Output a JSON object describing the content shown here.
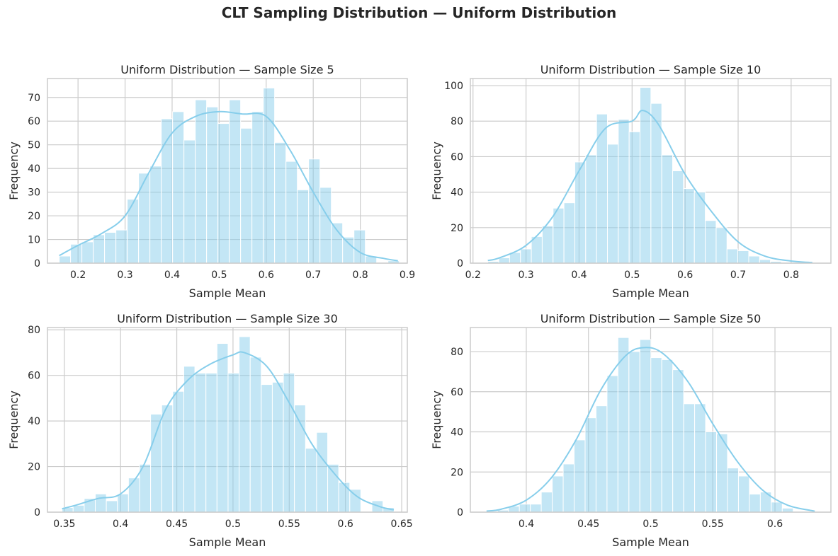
{
  "figure": {
    "title": "CLT Sampling Distribution — Uniform Distribution",
    "bar_color": "#87ceeb",
    "kde_color": "#87ceeb",
    "grid_color": "#cccccc"
  },
  "chart_data": [
    {
      "type": "bar",
      "title": "Uniform Distribution — Sample Size 5",
      "xlabel": "Sample Mean",
      "ylabel": "Frequency",
      "xlim": [
        0.135,
        0.9
      ],
      "ylim": [
        0,
        78
      ],
      "xticks": [
        0.2,
        0.3,
        0.4,
        0.5,
        0.6,
        0.7,
        0.8,
        0.9
      ],
      "yticks": [
        0,
        10,
        20,
        30,
        40,
        50,
        60,
        70
      ],
      "bin_start": 0.16,
      "bin_width": 0.0241,
      "values": [
        3,
        8,
        9,
        12,
        13,
        14,
        27,
        38,
        41,
        61,
        64,
        52,
        69,
        66,
        59,
        69,
        57,
        64,
        74,
        51,
        43,
        31,
        44,
        32,
        17,
        11,
        14,
        3,
        0,
        1
      ],
      "kde": [
        [
          0.16,
          3.2
        ],
        [
          0.2,
          7.5
        ],
        [
          0.25,
          12.5
        ],
        [
          0.3,
          20
        ],
        [
          0.35,
          38
        ],
        [
          0.4,
          55
        ],
        [
          0.45,
          62
        ],
        [
          0.5,
          64
        ],
        [
          0.55,
          63
        ],
        [
          0.6,
          62
        ],
        [
          0.65,
          48
        ],
        [
          0.7,
          30
        ],
        [
          0.75,
          14
        ],
        [
          0.8,
          4.5
        ],
        [
          0.85,
          2
        ],
        [
          0.88,
          1
        ]
      ]
    },
    {
      "type": "bar",
      "title": "Uniform Distribution — Sample Size 10",
      "xlabel": "Sample Mean",
      "ylabel": "Frequency",
      "xlim": [
        0.195,
        0.875
      ],
      "ylim": [
        0,
        104
      ],
      "xticks": [
        0.2,
        0.3,
        0.4,
        0.5,
        0.6,
        0.7,
        0.8
      ],
      "yticks": [
        0,
        20,
        40,
        60,
        80,
        100
      ],
      "bin_start": 0.228,
      "bin_width": 0.0205,
      "values": [
        1,
        3,
        6,
        8,
        15,
        21,
        31,
        34,
        57,
        61,
        84,
        67,
        81,
        74,
        99,
        90,
        61,
        52,
        42,
        40,
        24,
        20,
        8,
        7,
        4,
        2,
        1,
        0,
        0,
        0
      ],
      "kde": [
        [
          0.228,
          1.5
        ],
        [
          0.25,
          3
        ],
        [
          0.3,
          10
        ],
        [
          0.35,
          26
        ],
        [
          0.4,
          52
        ],
        [
          0.45,
          76
        ],
        [
          0.5,
          80
        ],
        [
          0.52,
          86
        ],
        [
          0.55,
          78
        ],
        [
          0.6,
          50
        ],
        [
          0.65,
          29
        ],
        [
          0.7,
          12
        ],
        [
          0.75,
          4
        ],
        [
          0.8,
          1.2
        ],
        [
          0.84,
          0.3
        ]
      ]
    },
    {
      "type": "bar",
      "title": "Uniform Distribution — Sample Size 30",
      "xlabel": "Sample Mean",
      "ylabel": "Frequency",
      "xlim": [
        0.335,
        0.655
      ],
      "ylim": [
        0,
        81
      ],
      "xticks": [
        0.35,
        0.4,
        0.45,
        0.5,
        0.55,
        0.6,
        0.65
      ],
      "yticks": [
        0,
        20,
        40,
        60,
        80
      ],
      "bin_start": 0.348,
      "bin_width": 0.00984,
      "values": [
        2,
        3,
        6,
        8,
        5,
        8,
        15,
        21,
        43,
        47,
        53,
        64,
        61,
        61,
        74,
        61,
        77,
        68,
        56,
        57,
        61,
        47,
        28,
        35,
        21,
        13,
        10,
        0,
        5,
        2
      ],
      "kde": [
        [
          0.348,
          1.5
        ],
        [
          0.36,
          3
        ],
        [
          0.38,
          6
        ],
        [
          0.4,
          8
        ],
        [
          0.42,
          20
        ],
        [
          0.44,
          45
        ],
        [
          0.46,
          58
        ],
        [
          0.48,
          65
        ],
        [
          0.5,
          69
        ],
        [
          0.51,
          70
        ],
        [
          0.53,
          64
        ],
        [
          0.55,
          48
        ],
        [
          0.57,
          30
        ],
        [
          0.59,
          17
        ],
        [
          0.61,
          7
        ],
        [
          0.63,
          2.5
        ],
        [
          0.643,
          1
        ]
      ]
    },
    {
      "type": "bar",
      "title": "Uniform Distribution — Sample Size 50",
      "xlabel": "Sample Mean",
      "ylabel": "Frequency",
      "xlim": [
        0.355,
        0.645
      ],
      "ylim": [
        0,
        92
      ],
      "xticks": [
        0.4,
        0.45,
        0.5,
        0.55,
        0.6
      ],
      "yticks": [
        0,
        20,
        40,
        60,
        80
      ],
      "bin_start": 0.368,
      "bin_width": 0.00881,
      "values": [
        0,
        1,
        3,
        4,
        4,
        10,
        18,
        24,
        36,
        47,
        53,
        68,
        87,
        80,
        86,
        77,
        76,
        71,
        54,
        54,
        40,
        39,
        22,
        18,
        9,
        10,
        5,
        2,
        0,
        0
      ],
      "kde": [
        [
          0.368,
          0.5
        ],
        [
          0.38,
          1.5
        ],
        [
          0.4,
          6
        ],
        [
          0.42,
          17
        ],
        [
          0.44,
          36
        ],
        [
          0.46,
          61
        ],
        [
          0.48,
          78
        ],
        [
          0.495,
          82
        ],
        [
          0.51,
          79
        ],
        [
          0.53,
          65
        ],
        [
          0.55,
          44
        ],
        [
          0.57,
          25
        ],
        [
          0.59,
          11
        ],
        [
          0.61,
          3.5
        ],
        [
          0.632,
          0.5
        ]
      ]
    }
  ]
}
